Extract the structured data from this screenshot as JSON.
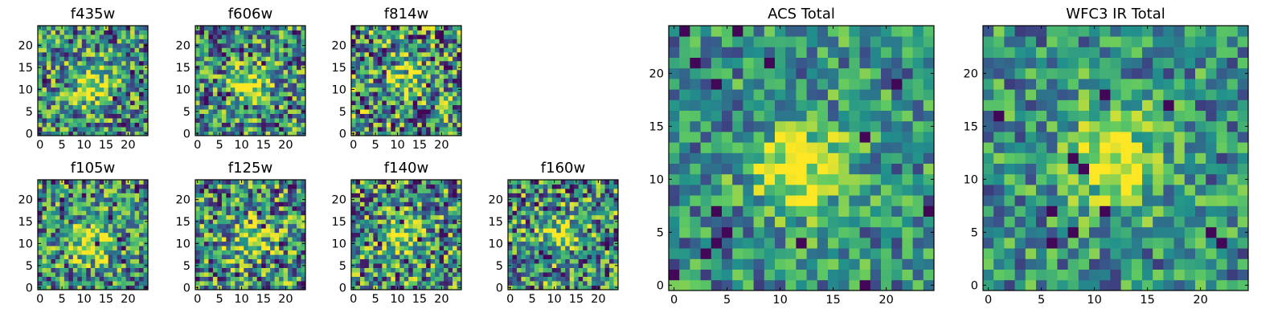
{
  "figure": {
    "colormap": "viridis",
    "colormap_stops": [
      "#440154",
      "#3b528b",
      "#21918c",
      "#5ec962",
      "#fde725"
    ]
  },
  "chart_data": [
    {
      "type": "heatmap",
      "title": "f435w",
      "grid_size": 25,
      "xlim": [
        0,
        24
      ],
      "ylim": [
        0,
        24
      ],
      "xticks": [
        "0",
        "5",
        "10",
        "15",
        "20"
      ],
      "yticks": [
        "0",
        "5",
        "10",
        "15",
        "20"
      ],
      "source_center": [
        12,
        11
      ],
      "source_peak": 0.78,
      "noise": 0.55,
      "seed": 3
    },
    {
      "type": "heatmap",
      "title": "f606w",
      "grid_size": 25,
      "xlim": [
        0,
        24
      ],
      "ylim": [
        0,
        24
      ],
      "xticks": [
        "0",
        "5",
        "10",
        "15",
        "20"
      ],
      "yticks": [
        "0",
        "5",
        "10",
        "15",
        "20"
      ],
      "source_center": [
        12,
        11
      ],
      "source_peak": 0.8,
      "noise": 0.55,
      "seed": 7
    },
    {
      "type": "heatmap",
      "title": "f814w",
      "grid_size": 25,
      "xlim": [
        0,
        24
      ],
      "ylim": [
        0,
        24
      ],
      "xticks": [
        "0",
        "5",
        "10",
        "15",
        "20"
      ],
      "yticks": [
        "0",
        "5",
        "10",
        "15",
        "20"
      ],
      "source_center": [
        12,
        12
      ],
      "source_peak": 0.6,
      "noise": 0.65,
      "seed": 11
    },
    {
      "type": "heatmap",
      "title": "f105w",
      "grid_size": 25,
      "xlim": [
        0,
        24
      ],
      "ylim": [
        0,
        24
      ],
      "xticks": [
        "0",
        "5",
        "10",
        "15",
        "20"
      ],
      "yticks": [
        "0",
        "5",
        "10",
        "15",
        "20"
      ],
      "source_center": [
        12,
        10
      ],
      "source_peak": 0.75,
      "noise": 0.55,
      "seed": 13
    },
    {
      "type": "heatmap",
      "title": "f125w",
      "grid_size": 25,
      "xlim": [
        0,
        24
      ],
      "ylim": [
        0,
        24
      ],
      "xticks": [
        "0",
        "5",
        "10",
        "15",
        "20"
      ],
      "yticks": [
        "0",
        "5",
        "10",
        "15",
        "20"
      ],
      "source_center": [
        12,
        11
      ],
      "source_peak": 0.7,
      "noise": 0.6,
      "seed": 17
    },
    {
      "type": "heatmap",
      "title": "f140w",
      "grid_size": 25,
      "xlim": [
        0,
        24
      ],
      "ylim": [
        0,
        24
      ],
      "xticks": [
        "0",
        "5",
        "10",
        "15",
        "20"
      ],
      "yticks": [
        "0",
        "5",
        "10",
        "15",
        "20"
      ],
      "source_center": [
        11,
        11
      ],
      "source_peak": 0.65,
      "noise": 0.6,
      "seed": 19
    },
    {
      "type": "heatmap",
      "title": "f160w",
      "grid_size": 25,
      "xlim": [
        0,
        24
      ],
      "ylim": [
        0,
        24
      ],
      "xticks": [
        "0",
        "5",
        "10",
        "15",
        "20"
      ],
      "yticks": [
        "0",
        "5",
        "10",
        "15",
        "20"
      ],
      "source_center": [
        11,
        12
      ],
      "source_peak": 0.65,
      "noise": 0.6,
      "seed": 23
    },
    {
      "type": "heatmap",
      "title": "ACS Total",
      "grid_size": 25,
      "xlim": [
        0,
        24
      ],
      "ylim": [
        0,
        24
      ],
      "xticks": [
        "0",
        "5",
        "10",
        "15",
        "20"
      ],
      "yticks": [
        "0",
        "5",
        "10",
        "15",
        "20"
      ],
      "source_center": [
        12,
        11
      ],
      "source_peak": 0.85,
      "noise": 0.4,
      "seed": 29
    },
    {
      "type": "heatmap",
      "title": "WFC3 IR Total",
      "grid_size": 25,
      "xlim": [
        0,
        24
      ],
      "ylim": [
        0,
        24
      ],
      "xticks": [
        "0",
        "5",
        "10",
        "15",
        "20"
      ],
      "yticks": [
        "0",
        "5",
        "10",
        "15",
        "20"
      ],
      "source_center": [
        12,
        12
      ],
      "source_peak": 0.8,
      "noise": 0.4,
      "seed": 31
    }
  ]
}
